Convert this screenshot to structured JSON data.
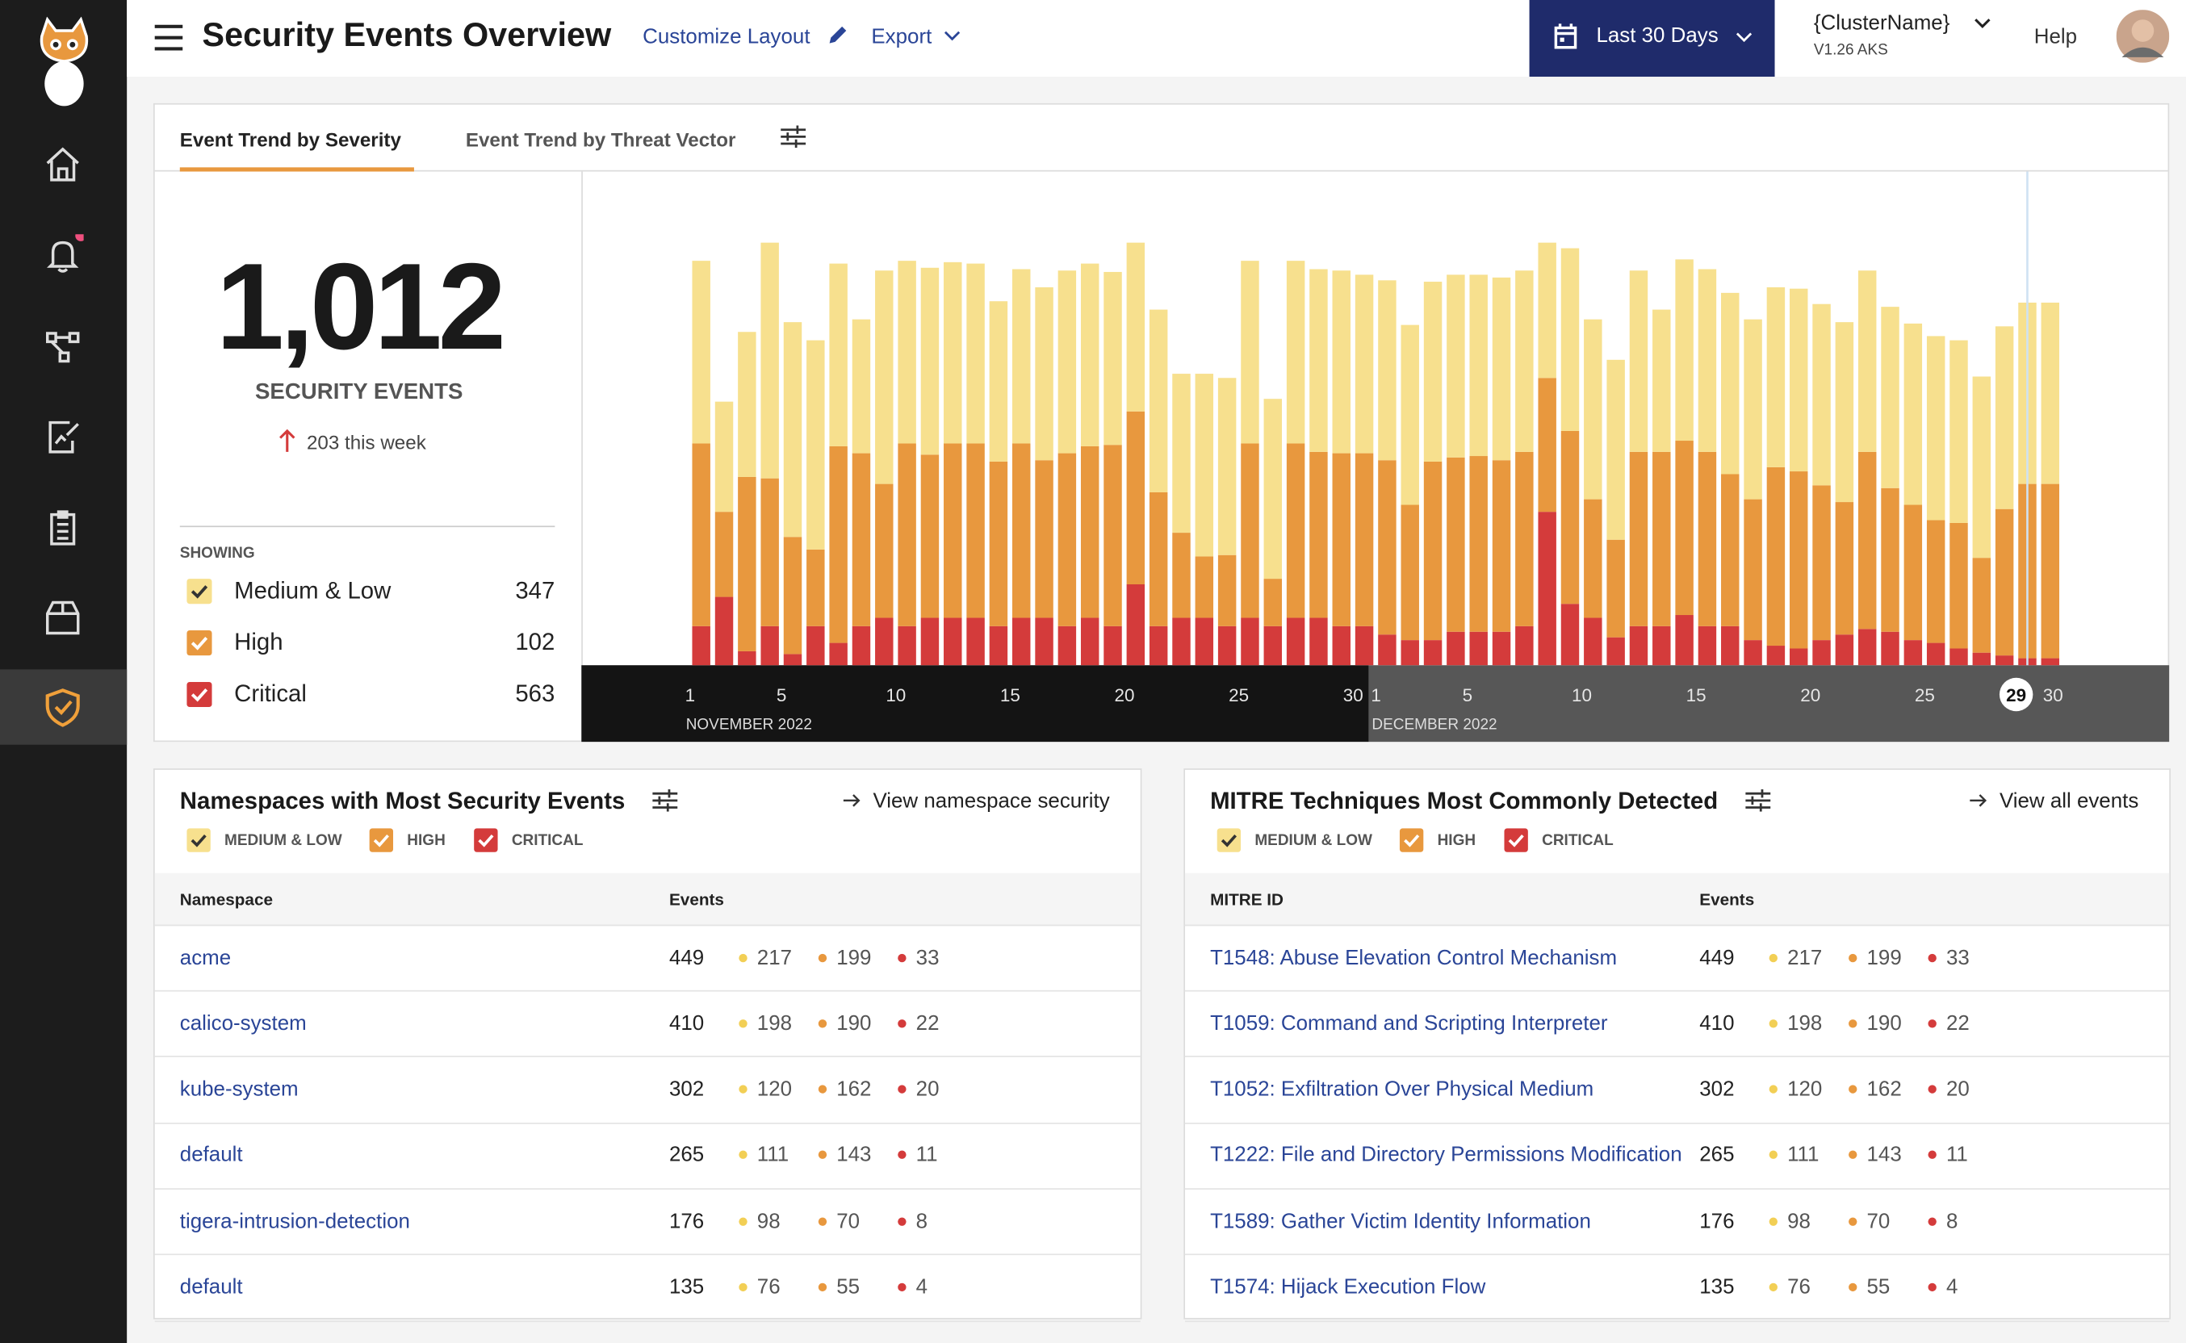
{
  "header": {
    "title": "Security Events Overview",
    "customize": "Customize Layout",
    "export": "Export",
    "date_range": "Last 30 Days",
    "cluster": "{ClusterName}",
    "version": "V1.26 AKS",
    "help": "Help"
  },
  "tabs": [
    "Event Trend by Severity",
    "Event Trend by Threat Vector"
  ],
  "summary": {
    "total": "1,012",
    "label": "SECURITY EVENTS",
    "week": "203 this week",
    "showing": "SHOWING",
    "counts": [
      347,
      102,
      563
    ]
  },
  "chart_data": {
    "type": "bar",
    "stacked": true,
    "categories": [
      "1",
      null,
      null,
      null,
      "5",
      null,
      null,
      null,
      null,
      "10",
      null,
      null,
      null,
      null,
      "15",
      null,
      null,
      null,
      null,
      "20",
      null,
      null,
      null,
      null,
      "25",
      null,
      null,
      null,
      null,
      "30",
      "1",
      null,
      null,
      null,
      "5",
      null,
      null,
      null,
      null,
      "10",
      null,
      null,
      null,
      null,
      "15",
      null,
      null,
      null,
      null,
      "20",
      null,
      null,
      null,
      null,
      "25",
      null,
      null,
      null,
      "29",
      "30"
    ],
    "periods": [
      "NOVEMBER 2022",
      "DECEMBER 2022"
    ],
    "highlight": 58,
    "ylim": [
      0,
      354
    ],
    "series": [
      {
        "name": "Medium & Low",
        "color": "#f7e08e",
        "values": [
          131,
          79,
          104,
          169,
          154,
          150,
          131,
          96,
          153,
          131,
          134,
          130,
          129,
          115,
          125,
          124,
          131,
          131,
          124,
          121,
          131,
          114,
          131,
          127,
          131,
          129,
          131,
          131,
          131,
          128,
          129,
          129,
          129,
          131,
          130,
          131,
          130,
          97,
          131,
          129,
          129,
          130,
          102,
          130,
          131,
          130,
          129,
          129,
          131,
          130,
          129,
          130,
          130,
          130,
          132,
          131,
          130,
          131,
          130,
          130
        ]
      },
      {
        "name": "High",
        "color": "#e8983e",
        "values": [
          131,
          61,
          125,
          106,
          84,
          55,
          141,
          124,
          96,
          131,
          117,
          125,
          125,
          118,
          125,
          113,
          124,
          123,
          130,
          124,
          96,
          61,
          44,
          51,
          125,
          34,
          125,
          119,
          124,
          124,
          125,
          97,
          128,
          125,
          126,
          123,
          125,
          96,
          124,
          85,
          70,
          125,
          125,
          125,
          125,
          109,
          101,
          128,
          127,
          111,
          95,
          127,
          103,
          97,
          88,
          90,
          68,
          105,
          125,
          125
        ]
      },
      {
        "name": "Critical",
        "color": "#d43b3b",
        "values": [
          28,
          49,
          10,
          28,
          8,
          28,
          16,
          28,
          34,
          28,
          34,
          34,
          34,
          28,
          34,
          34,
          28,
          34,
          28,
          58,
          28,
          34,
          34,
          28,
          34,
          28,
          34,
          34,
          28,
          28,
          22,
          18,
          18,
          24,
          24,
          24,
          28,
          110,
          44,
          34,
          20,
          28,
          28,
          36,
          28,
          28,
          18,
          14,
          12,
          18,
          22,
          26,
          24,
          18,
          16,
          12,
          9,
          7,
          5,
          5
        ]
      }
    ]
  },
  "namespaces": {
    "title": "Namespaces with Most Security Events",
    "link": "View namespace security",
    "legend": [
      "MEDIUM & LOW",
      "HIGH",
      "CRITICAL"
    ],
    "columns": [
      "Namespace",
      "Events"
    ],
    "rows": [
      [
        "acme",
        449,
        217,
        199,
        33
      ],
      [
        "calico-system",
        410,
        198,
        190,
        22
      ],
      [
        "kube-system",
        302,
        120,
        162,
        20
      ],
      [
        "default",
        265,
        111,
        143,
        11
      ],
      [
        "tigera-intrusion-detection",
        176,
        98,
        70,
        8
      ],
      [
        "default",
        135,
        76,
        55,
        4
      ]
    ]
  },
  "mitre": {
    "title": "MITRE Techniques Most Commonly Detected",
    "link": "View all events",
    "legend": [
      "MEDIUM & LOW",
      "HIGH",
      "CRITICAL"
    ],
    "columns": [
      "MITRE ID",
      "Events"
    ],
    "rows": [
      [
        "T1548: Abuse Elevation Control Mechanism",
        449,
        217,
        199,
        33
      ],
      [
        "T1059: Command and Scripting Interpreter",
        410,
        198,
        190,
        22
      ],
      [
        "T1052: Exfiltration Over Physical Medium",
        302,
        120,
        162,
        20
      ],
      [
        "T1222: File and Directory Permissions Modification",
        265,
        111,
        143,
        11
      ],
      [
        "T1589: Gather Victim Identity Information",
        176,
        98,
        70,
        8
      ],
      [
        "T1574: Hijack Execution Flow",
        135,
        76,
        55,
        4
      ]
    ]
  }
}
